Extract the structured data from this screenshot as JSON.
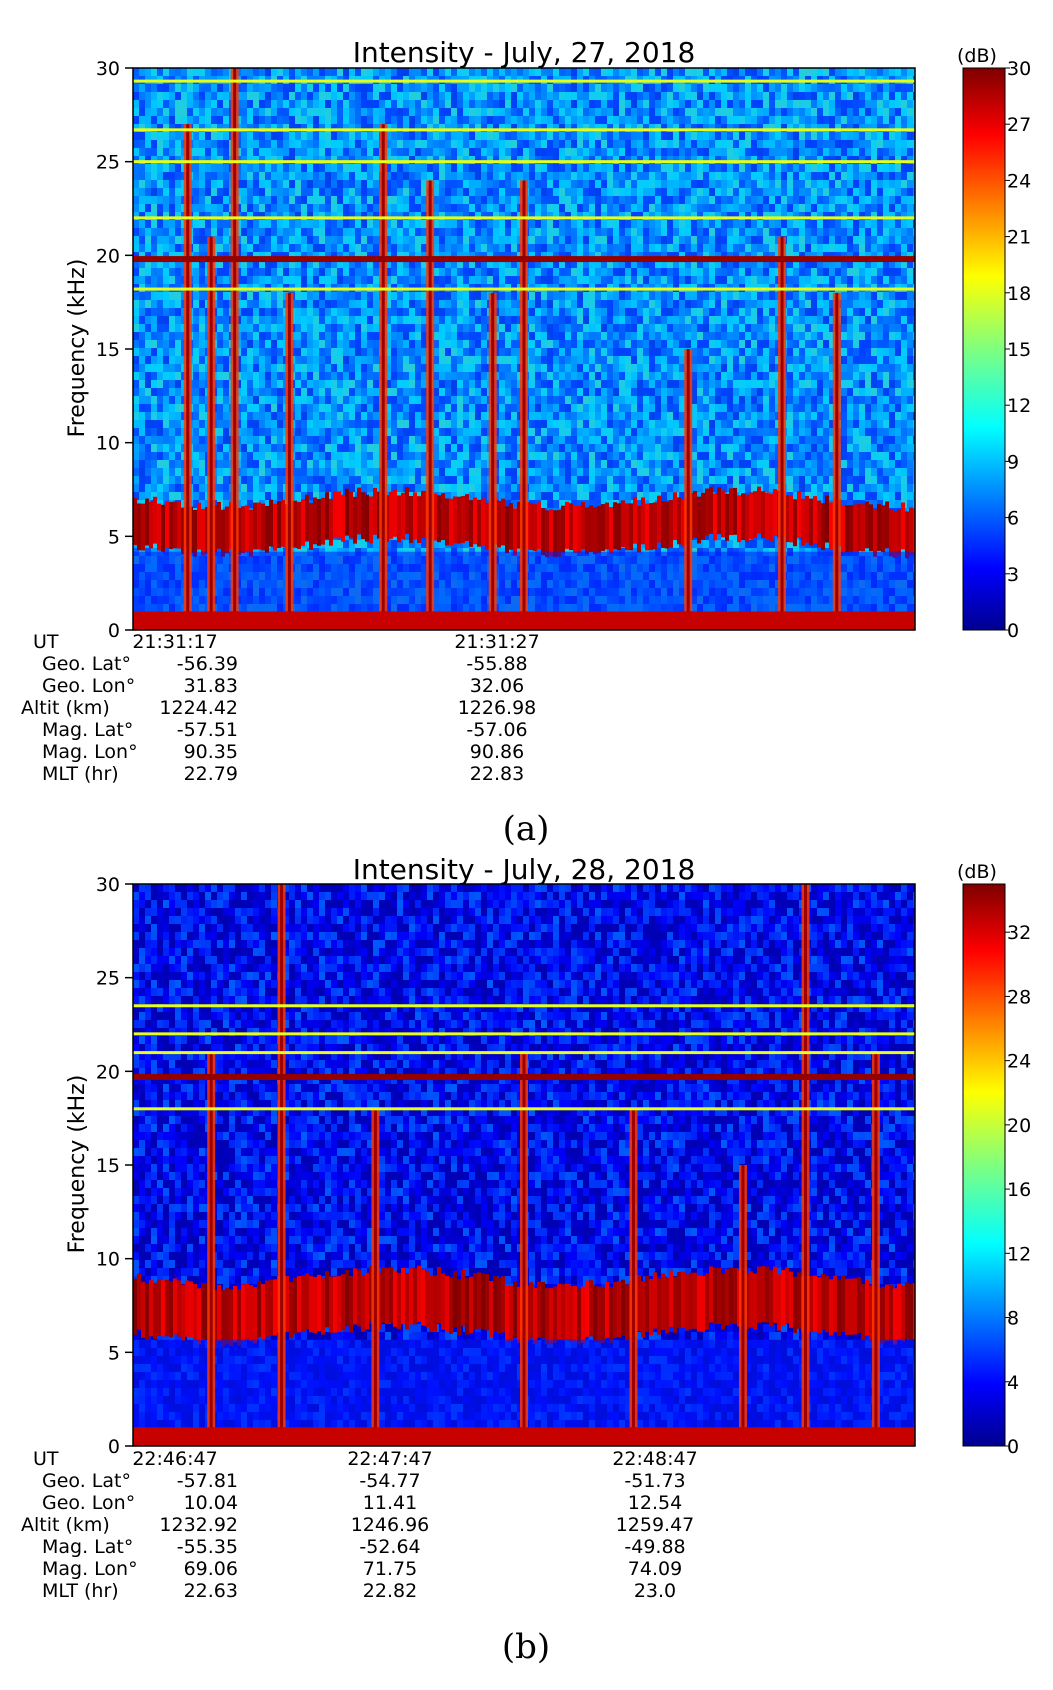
{
  "chart_data": [
    {
      "type": "heatmap",
      "title": "Intensity - July, 27, 2018",
      "ylabel": "Frequency (kHz)",
      "ylim": [
        0,
        30
      ],
      "yticks": [
        "0",
        "5",
        "10",
        "15",
        "20",
        "25",
        "30"
      ],
      "colorbar": {
        "label": "(dB)",
        "min": 0,
        "max": 30,
        "ticks": [
          "0",
          "3",
          "6",
          "9",
          "12",
          "15",
          "18",
          "21",
          "24",
          "27",
          "30"
        ]
      },
      "caption": "(a)",
      "ephemeris": {
        "row_labels": [
          "UT",
          "Geo. Lat°",
          "Geo. Lon°",
          "Altit (km)",
          "Mag. Lat°",
          "Mag. Lon°",
          "MLT (hr)"
        ],
        "columns": [
          [
            "21:31:17",
            "-56.39",
            "31.83",
            "1224.42",
            "-57.51",
            "90.35",
            "22.79"
          ],
          [
            "21:31:27",
            "-55.88",
            "32.06",
            "1226.98",
            "-57.06",
            "90.86",
            "22.83"
          ]
        ]
      },
      "features": {
        "background_dB": 8,
        "horizontal_lines_kHz": [
          18.2,
          19.8,
          22.0,
          25.0,
          26.7,
          29.3
        ],
        "hiss_band_kHz": [
          4.5,
          7.0
        ],
        "low_freq_band_kHz": [
          0,
          1
        ]
      }
    },
    {
      "type": "heatmap",
      "title": "Intensity - July, 28, 2018",
      "ylabel": "Frequency (kHz)",
      "ylim": [
        0,
        30
      ],
      "yticks": [
        "0",
        "5",
        "10",
        "15",
        "20",
        "25",
        "30"
      ],
      "colorbar": {
        "label": "(dB)",
        "min": 0,
        "max": 35,
        "ticks": [
          "0",
          "4",
          "8",
          "12",
          "16",
          "20",
          "24",
          "28",
          "32"
        ]
      },
      "caption": "(b)",
      "ephemeris": {
        "row_labels": [
          "UT",
          "Geo. Lat°",
          "Geo. Lon°",
          "Altit (km)",
          "Mag. Lat°",
          "Mag. Lon°",
          "MLT (hr)"
        ],
        "columns": [
          [
            "22:46:47",
            "-57.81",
            "10.04",
            "1232.92",
            "-55.35",
            "69.06",
            "22.63"
          ],
          [
            "22:47:47",
            "-54.77",
            "11.41",
            "1246.96",
            "-52.64",
            "71.75",
            "22.82"
          ],
          [
            "22:48:47",
            "-51.73",
            "12.54",
            "1259.47",
            "-49.88",
            "74.09",
            "23.0"
          ]
        ]
      },
      "features": {
        "background_dB": 4,
        "horizontal_lines_kHz": [
          18.0,
          19.7,
          21.0,
          22.0,
          23.5
        ],
        "hiss_band_kHz": [
          6.0,
          9.0
        ],
        "low_freq_band_kHz": [
          0,
          1
        ]
      }
    }
  ]
}
